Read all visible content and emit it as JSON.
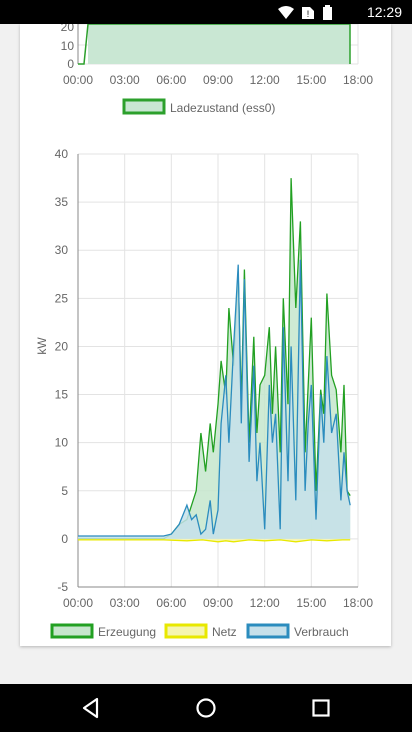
{
  "status_bar": {
    "time": "12:29",
    "icons": [
      "wifi-icon",
      "no-sim-icon",
      "battery-icon"
    ]
  },
  "top_chart": {
    "chart_data": {
      "type": "area",
      "y_ticks_visible": [
        "20",
        "10",
        "0"
      ],
      "x_ticks": [
        "00:00",
        "03:00",
        "06:00",
        "09:00",
        "12:00",
        "15:00",
        "18:00"
      ],
      "legend": [
        "Ladezustand (ess0)"
      ],
      "series": [
        {
          "name": "Ladezustand (ess0)",
          "color": "#2ca02c",
          "fill": "#c9e7d3"
        }
      ]
    }
  },
  "main_chart": {
    "chart_data": {
      "type": "line",
      "ylabel": "kW",
      "ylim": [
        -5,
        40
      ],
      "y_ticks": [
        "40",
        "35",
        "30",
        "25",
        "20",
        "15",
        "10",
        "5",
        "0",
        "-5"
      ],
      "x_ticks": [
        "00:00",
        "03:00",
        "06:00",
        "09:00",
        "12:00",
        "15:00",
        "18:00"
      ],
      "xlim": [
        0,
        18
      ],
      "legend_position": "bottom",
      "series": [
        {
          "name": "Erzeugung",
          "color": "#22a022",
          "fill": "#c6e6cc",
          "x": [
            0,
            5.5,
            6.0,
            6.5,
            7.0,
            7.3,
            7.6,
            7.9,
            8.2,
            8.5,
            8.7,
            9.0,
            9.2,
            9.5,
            9.7,
            10.0,
            10.3,
            10.5,
            10.7,
            11.0,
            11.3,
            11.5,
            11.7,
            12.0,
            12.3,
            12.5,
            12.7,
            13.0,
            13.2,
            13.5,
            13.7,
            14.0,
            14.3,
            14.6,
            14.8,
            15.0,
            15.3,
            15.6,
            15.8,
            16.0,
            16.3,
            16.6,
            16.9,
            17.1,
            17.3,
            17.5
          ],
          "y": [
            0,
            0,
            0.5,
            1.5,
            2.0,
            3.5,
            5.0,
            11.0,
            7.0,
            12.0,
            9.0,
            14.0,
            18.5,
            15.0,
            24.0,
            18.0,
            27.5,
            14.0,
            28.0,
            10.0,
            21.0,
            11.0,
            16.0,
            17.0,
            22.0,
            13.0,
            20.0,
            9.0,
            25.0,
            14.0,
            37.5,
            24.0,
            33.0,
            9.0,
            16.0,
            23.0,
            5.0,
            15.5,
            13.0,
            25.5,
            17.0,
            15.5,
            9.0,
            16.0,
            5.0,
            4.5
          ]
        },
        {
          "name": "Netz",
          "color": "#e8e800",
          "fill": "#f5f5b0",
          "x": [
            0,
            5.5,
            7.0,
            8.0,
            9.0,
            9.5,
            10.0,
            11.0,
            12.0,
            13.0,
            14.0,
            15.0,
            16.0,
            17.0,
            17.5
          ],
          "y": [
            -0.1,
            -0.1,
            -0.2,
            -0.1,
            -0.3,
            -0.2,
            -0.3,
            -0.1,
            -0.2,
            -0.1,
            -0.3,
            -0.1,
            -0.2,
            -0.1,
            -0.1
          ]
        },
        {
          "name": "Verbrauch",
          "color": "#2b8cbe",
          "fill": "#c6e0ea",
          "x": [
            0,
            5.5,
            6.0,
            6.5,
            7.0,
            7.3,
            7.6,
            7.9,
            8.2,
            8.5,
            8.7,
            9.0,
            9.2,
            9.5,
            9.7,
            10.0,
            10.3,
            10.5,
            10.7,
            11.0,
            11.3,
            11.5,
            11.7,
            12.0,
            12.3,
            12.5,
            12.7,
            13.0,
            13.2,
            13.5,
            13.7,
            14.0,
            14.3,
            14.6,
            14.8,
            15.0,
            15.3,
            15.6,
            15.8,
            16.0,
            16.3,
            16.6,
            16.9,
            17.1,
            17.3,
            17.5
          ],
          "y": [
            0.3,
            0.3,
            0.5,
            1.5,
            3.5,
            2.0,
            2.5,
            0.5,
            1.0,
            4.0,
            0.5,
            3.0,
            12.0,
            17.0,
            10.0,
            20.0,
            28.5,
            12.0,
            27.0,
            8.0,
            18.0,
            6.0,
            10.0,
            1.0,
            16.0,
            10.0,
            13.0,
            1.0,
            22.0,
            6.0,
            20.0,
            4.0,
            29.0,
            5.0,
            12.0,
            16.0,
            2.0,
            15.0,
            10.0,
            19.0,
            11.0,
            13.0,
            4.0,
            9.0,
            5.0,
            3.5
          ]
        }
      ]
    }
  }
}
